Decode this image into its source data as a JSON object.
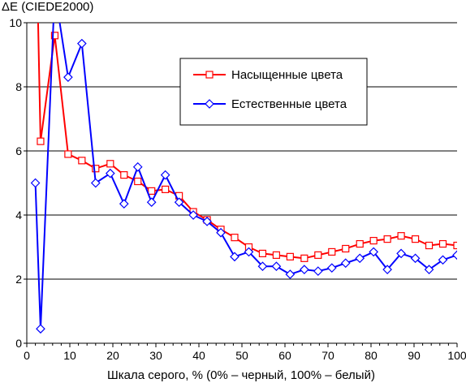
{
  "chart_data": {
    "type": "line",
    "title": "",
    "ylabel": "ΔE (CIEDE2000)",
    "xlabel": "Шкала серого, % (0% – черный, 100% – белый)",
    "xlim": [
      0,
      100
    ],
    "ylim": [
      0,
      10
    ],
    "x_ticks": [
      "0",
      "10",
      "20",
      "30",
      "40",
      "50",
      "60",
      "70",
      "80",
      "90",
      "100"
    ],
    "y_ticks": [
      "0",
      "2",
      "4",
      "6",
      "8",
      "10"
    ],
    "grid": "horizontal major lines",
    "legend_position": "upper-right",
    "series": [
      {
        "name": "Насыщенные цвета",
        "color": "#ff0000",
        "marker": "square",
        "points": [
          [
            2.4,
            11.5
          ],
          [
            3.2,
            6.3
          ],
          [
            6.5,
            9.6
          ],
          [
            9.6,
            5.9
          ],
          [
            12.8,
            5.7
          ],
          [
            16,
            5.45
          ],
          [
            19.4,
            5.6
          ],
          [
            22.6,
            5.25
          ],
          [
            25.8,
            5.05
          ],
          [
            29,
            4.75
          ],
          [
            32.2,
            4.8
          ],
          [
            35.4,
            4.6
          ],
          [
            38.7,
            4.1
          ],
          [
            41.9,
            3.85
          ],
          [
            45.1,
            3.55
          ],
          [
            48.3,
            3.3
          ],
          [
            51.6,
            3.0
          ],
          [
            54.8,
            2.8
          ],
          [
            58,
            2.75
          ],
          [
            61.2,
            2.7
          ],
          [
            64.5,
            2.65
          ],
          [
            67.7,
            2.75
          ],
          [
            70.9,
            2.85
          ],
          [
            74.1,
            2.95
          ],
          [
            77.4,
            3.1
          ],
          [
            80.6,
            3.2
          ],
          [
            83.8,
            3.25
          ],
          [
            87,
            3.35
          ],
          [
            90.3,
            3.25
          ],
          [
            93.5,
            3.05
          ],
          [
            96.7,
            3.1
          ],
          [
            100,
            3.05
          ]
        ]
      },
      {
        "name": "Естественные цвета",
        "color": "#0000ff",
        "marker": "diamond",
        "points": [
          [
            2.0,
            5.0
          ],
          [
            3.2,
            0.45
          ],
          [
            6.5,
            11.0
          ],
          [
            9.6,
            8.3
          ],
          [
            12.8,
            9.35
          ],
          [
            16,
            5.0
          ],
          [
            19.4,
            5.3
          ],
          [
            22.6,
            4.35
          ],
          [
            25.8,
            5.5
          ],
          [
            29,
            4.4
          ],
          [
            32.2,
            5.25
          ],
          [
            35.4,
            4.4
          ],
          [
            38.7,
            4.0
          ],
          [
            41.9,
            3.8
          ],
          [
            45.1,
            3.45
          ],
          [
            48.3,
            2.7
          ],
          [
            51.6,
            2.85
          ],
          [
            54.8,
            2.4
          ],
          [
            58,
            2.4
          ],
          [
            61.2,
            2.15
          ],
          [
            64.5,
            2.3
          ],
          [
            67.7,
            2.25
          ],
          [
            70.9,
            2.35
          ],
          [
            74.1,
            2.5
          ],
          [
            77.4,
            2.65
          ],
          [
            80.6,
            2.85
          ],
          [
            83.8,
            2.3
          ],
          [
            87,
            2.8
          ],
          [
            90.3,
            2.65
          ],
          [
            93.5,
            2.3
          ],
          [
            96.7,
            2.6
          ],
          [
            100,
            2.75
          ]
        ]
      }
    ]
  }
}
